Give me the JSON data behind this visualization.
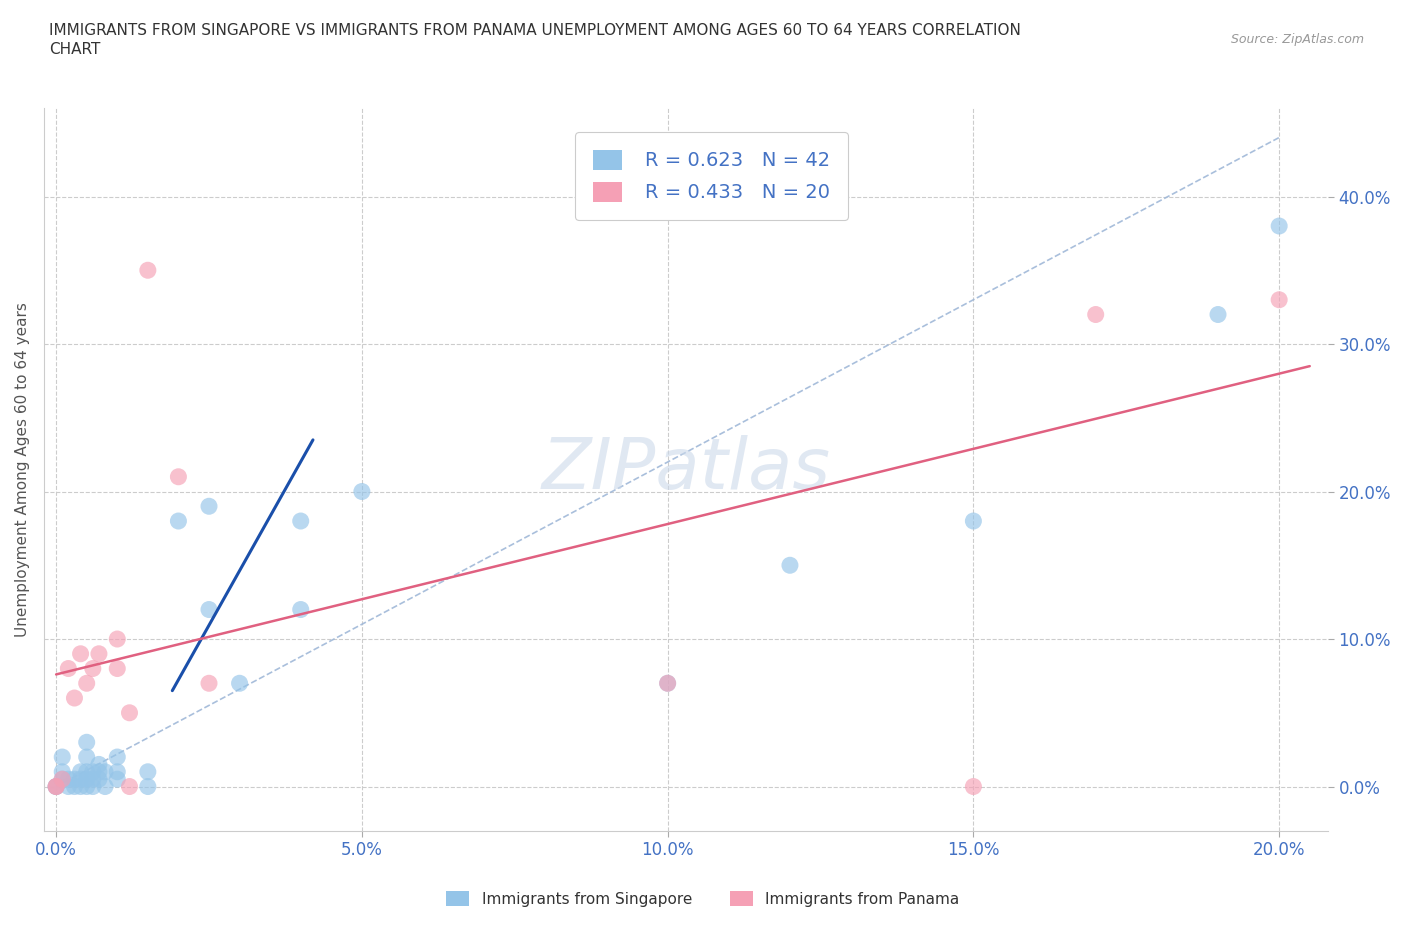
{
  "title": "IMMIGRANTS FROM SINGAPORE VS IMMIGRANTS FROM PANAMA UNEMPLOYMENT AMONG AGES 60 TO 64 YEARS CORRELATION\nCHART",
  "source": "Source: ZipAtlas.com",
  "ylabel": "Unemployment Among Ages 60 to 64 years",
  "xlim": [
    -0.002,
    0.208
  ],
  "ylim": [
    -0.03,
    0.46
  ],
  "xticks": [
    0.0,
    0.05,
    0.1,
    0.15,
    0.2
  ],
  "yticks": [
    0.0,
    0.1,
    0.2,
    0.3,
    0.4
  ],
  "singapore_color": "#94c4e8",
  "panama_color": "#f5a0b5",
  "singapore_R": 0.623,
  "singapore_N": 42,
  "panama_R": 0.433,
  "panama_N": 20,
  "singapore_scatter": [
    [
      0.0,
      0.0
    ],
    [
      0.0,
      0.0
    ],
    [
      0.001,
      0.005
    ],
    [
      0.001,
      0.01
    ],
    [
      0.001,
      0.02
    ],
    [
      0.002,
      0.0
    ],
    [
      0.002,
      0.005
    ],
    [
      0.003,
      0.0
    ],
    [
      0.003,
      0.005
    ],
    [
      0.004,
      0.0
    ],
    [
      0.004,
      0.005
    ],
    [
      0.004,
      0.01
    ],
    [
      0.005,
      0.0
    ],
    [
      0.005,
      0.005
    ],
    [
      0.005,
      0.01
    ],
    [
      0.005,
      0.02
    ],
    [
      0.005,
      0.03
    ],
    [
      0.006,
      0.0
    ],
    [
      0.006,
      0.005
    ],
    [
      0.006,
      0.01
    ],
    [
      0.007,
      0.005
    ],
    [
      0.007,
      0.01
    ],
    [
      0.007,
      0.015
    ],
    [
      0.008,
      0.0
    ],
    [
      0.008,
      0.01
    ],
    [
      0.01,
      0.005
    ],
    [
      0.01,
      0.01
    ],
    [
      0.01,
      0.02
    ],
    [
      0.015,
      0.0
    ],
    [
      0.015,
      0.01
    ],
    [
      0.02,
      0.18
    ],
    [
      0.025,
      0.12
    ],
    [
      0.025,
      0.19
    ],
    [
      0.03,
      0.07
    ],
    [
      0.04,
      0.12
    ],
    [
      0.04,
      0.18
    ],
    [
      0.05,
      0.2
    ],
    [
      0.1,
      0.07
    ],
    [
      0.12,
      0.15
    ],
    [
      0.15,
      0.18
    ],
    [
      0.19,
      0.32
    ],
    [
      0.2,
      0.38
    ]
  ],
  "panama_scatter": [
    [
      0.0,
      0.0
    ],
    [
      0.0,
      0.0
    ],
    [
      0.001,
      0.005
    ],
    [
      0.002,
      0.08
    ],
    [
      0.003,
      0.06
    ],
    [
      0.004,
      0.09
    ],
    [
      0.005,
      0.07
    ],
    [
      0.006,
      0.08
    ],
    [
      0.007,
      0.09
    ],
    [
      0.01,
      0.08
    ],
    [
      0.01,
      0.1
    ],
    [
      0.012,
      0.0
    ],
    [
      0.012,
      0.05
    ],
    [
      0.015,
      0.35
    ],
    [
      0.02,
      0.21
    ],
    [
      0.025,
      0.07
    ],
    [
      0.1,
      0.07
    ],
    [
      0.15,
      0.0
    ],
    [
      0.17,
      0.32
    ],
    [
      0.2,
      0.33
    ]
  ],
  "singapore_line_x": [
    0.019,
    0.042
  ],
  "singapore_line_y": [
    0.065,
    0.235
  ],
  "panama_line_x": [
    0.0,
    0.205
  ],
  "panama_line_y": [
    0.076,
    0.285
  ],
  "diag_line_x": [
    0.0,
    0.2
  ],
  "diag_line_y": [
    0.0,
    0.44
  ],
  "diag_color": "#a0b8d8",
  "blue_line_color": "#1a4faa",
  "pink_line_color": "#e06080",
  "background_color": "#ffffff",
  "grid_color": "#cccccc",
  "watermark": "ZIPatlas",
  "legend_blue_label": "Immigrants from Singapore",
  "legend_pink_label": "Immigrants from Panama"
}
